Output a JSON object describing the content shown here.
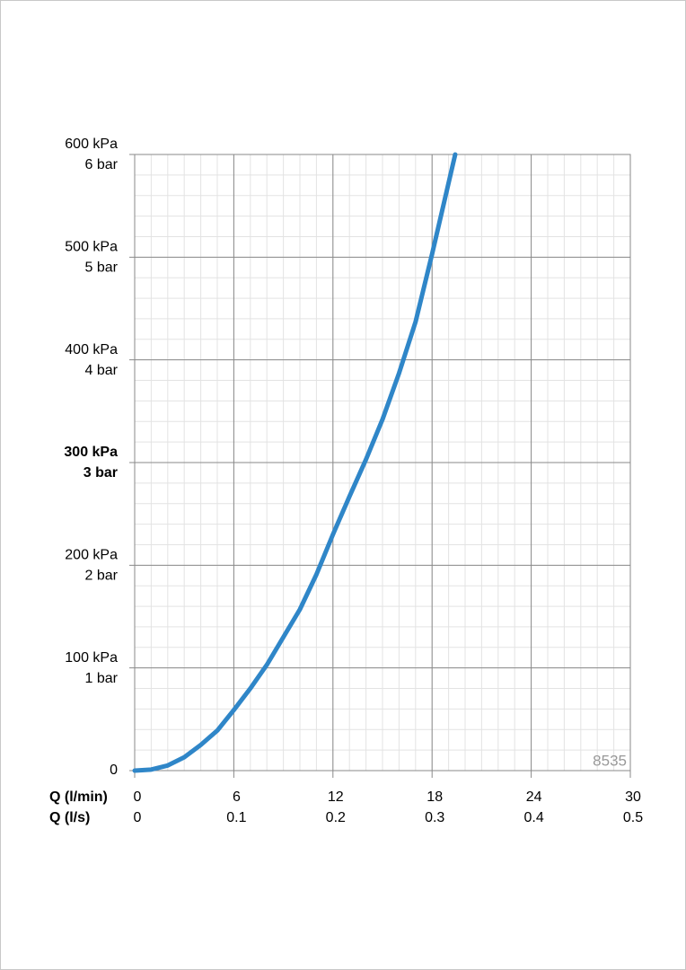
{
  "chart_data": {
    "type": "line",
    "xlabel": "Q (l/min)",
    "x2label": "Q (l/s)",
    "x": [
      0,
      1,
      2,
      3,
      4,
      5,
      6,
      7,
      8,
      9,
      10,
      11,
      12,
      13,
      14,
      15,
      16,
      17,
      18,
      19.4
    ],
    "series": [
      {
        "color": "#2f86c8",
        "values": [
          0,
          1,
          5,
          13,
          25,
          39,
          59,
          80,
          103,
          130,
          157,
          191,
          230,
          267,
          303,
          342,
          387,
          437,
          503,
          600
        ]
      }
    ],
    "xlim": [
      0,
      30
    ],
    "xticks": [
      0,
      6,
      12,
      18,
      24,
      30
    ],
    "x2lim": [
      0,
      0.5
    ],
    "x2ticks": [
      0,
      0.1,
      0.2,
      0.3,
      0.4,
      0.5
    ],
    "ylim": [
      0,
      600
    ],
    "yticks": [
      0,
      {
        "value": 100,
        "label": "100 kPa"
      },
      {
        "value": 200,
        "label": "200 kPa"
      },
      {
        "value": 300,
        "label": "300 kPa"
      },
      {
        "value": 400,
        "label": "400 kPa"
      },
      {
        "value": 500,
        "label": "500 kPa"
      },
      {
        "value": 600,
        "label": "600 kPa"
      }
    ],
    "ytick_sublabels": [
      null,
      "1 bar",
      "2 bar",
      "3 bar",
      "4 bar",
      "5 bar",
      "6 bar"
    ],
    "bold_ytick_value": 300,
    "grid": true,
    "minor_grid": {
      "x": 1,
      "y": 20
    },
    "annotation": "8535"
  }
}
